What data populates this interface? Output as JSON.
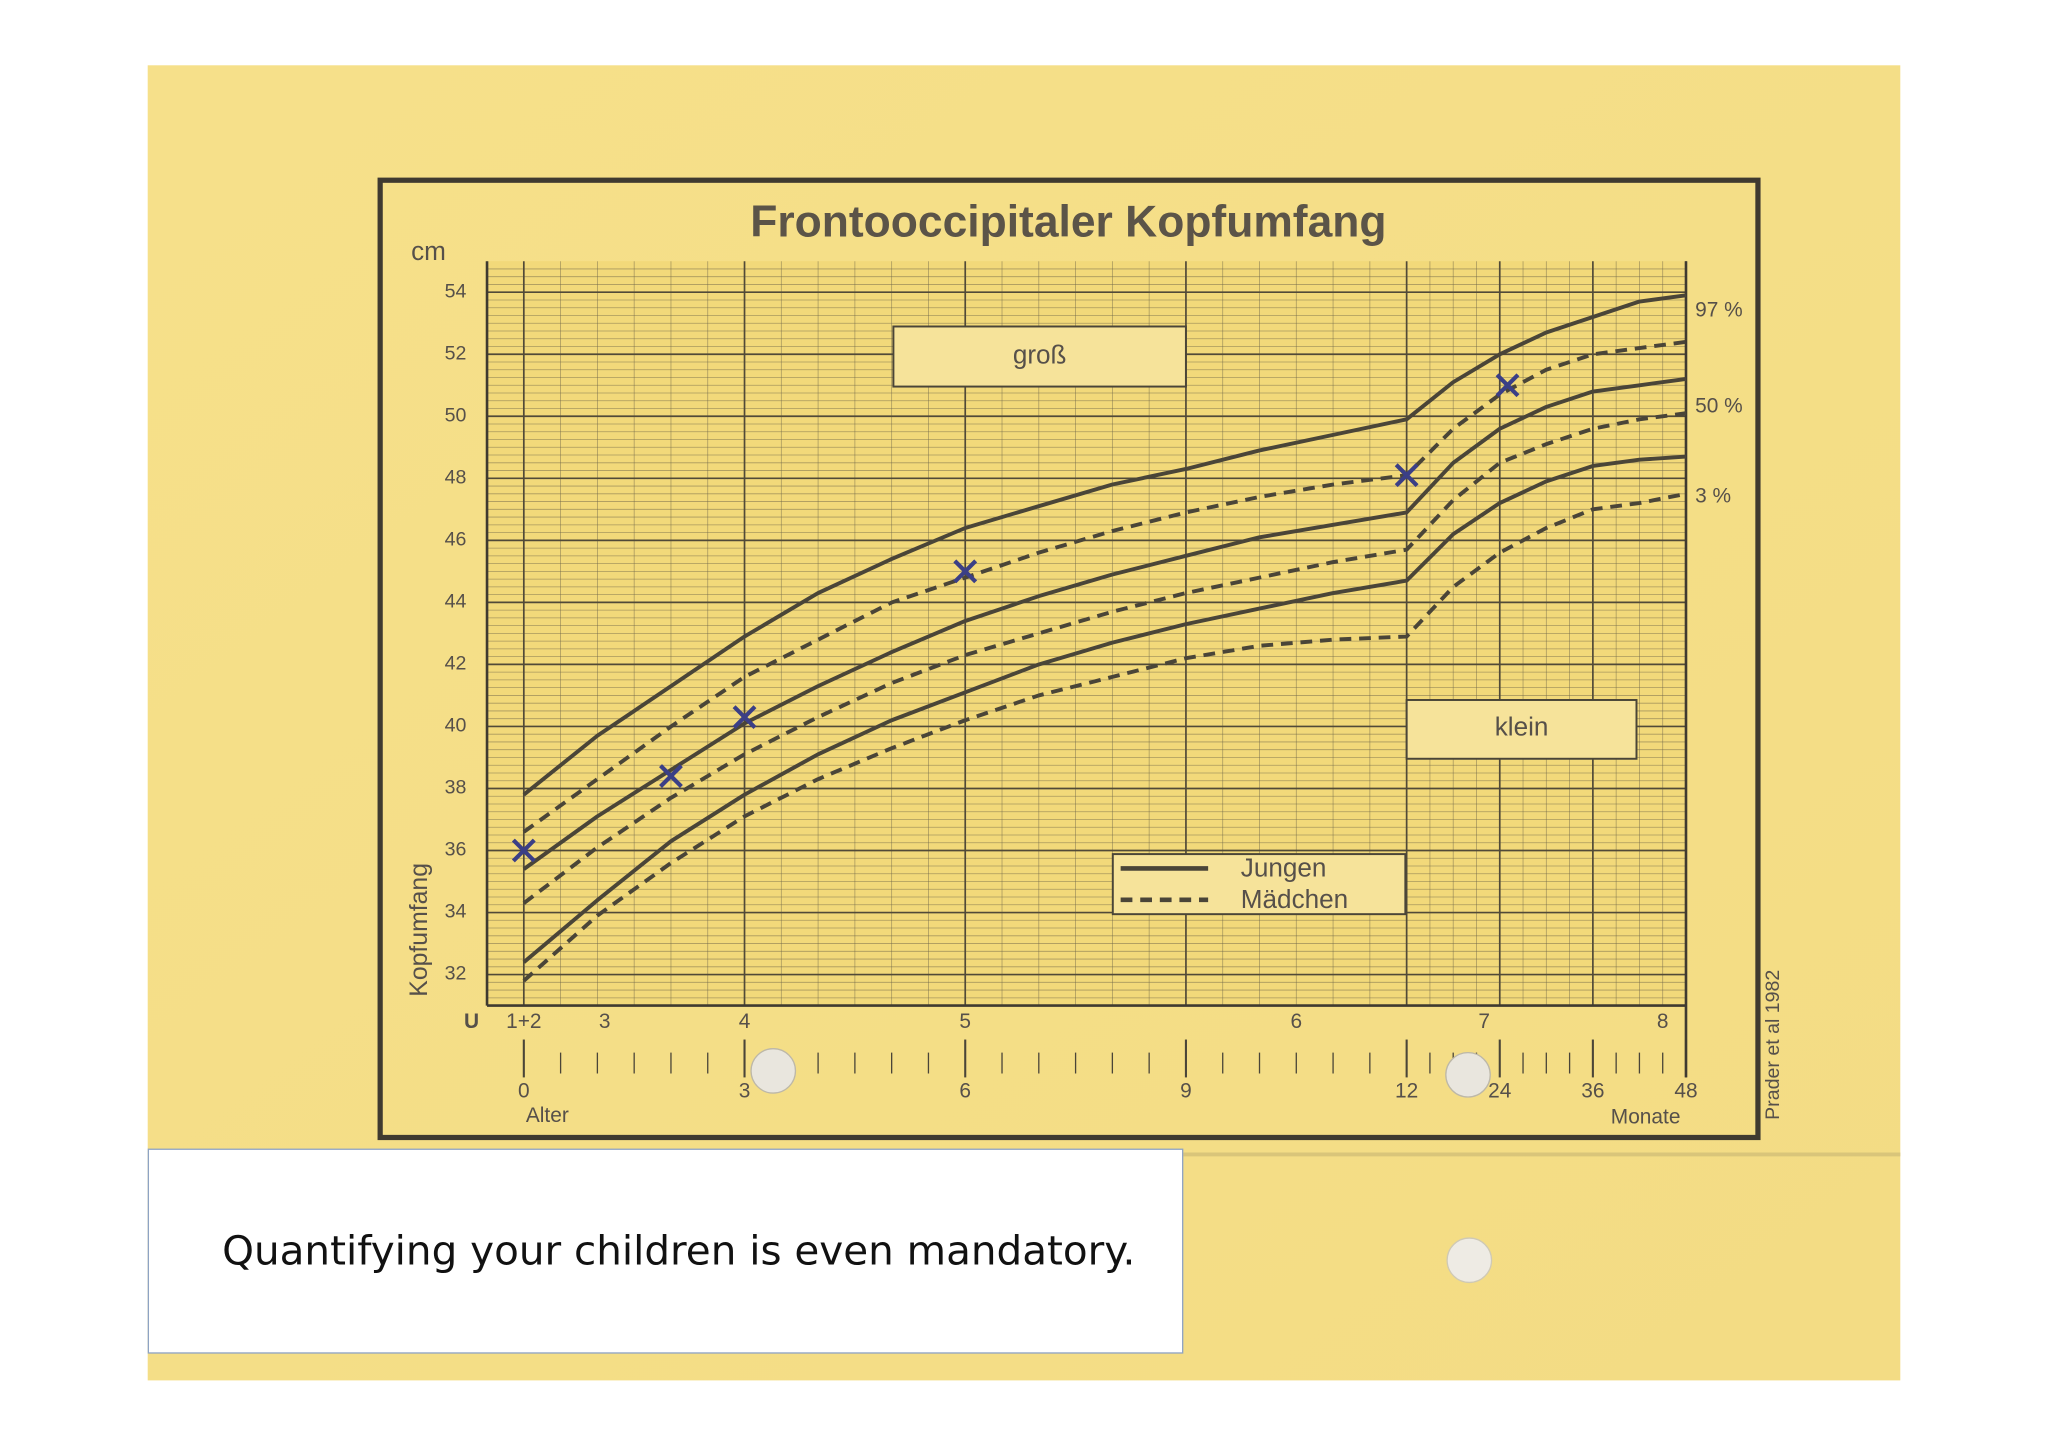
{
  "slide": {
    "caption": "Quantifying your children is even mandatory."
  },
  "chart_data": {
    "type": "line",
    "title": "Frontooccipitaler Kopfumfang",
    "y_unit": "cm",
    "ylabel": "Kopfumfang",
    "xlabel": "Alter",
    "x2label": "Monate",
    "u_label": "U",
    "region_labels": {
      "high": "groß",
      "low": "klein"
    },
    "source": "Prader et al 1982",
    "x": [
      0,
      1,
      2,
      3,
      4,
      5,
      6,
      7,
      8,
      9,
      10,
      11,
      12,
      18,
      24,
      30,
      36,
      42,
      48
    ],
    "xlim": [
      -0.5,
      48
    ],
    "xticks": [
      0,
      3,
      6,
      9,
      12,
      24,
      36,
      48
    ],
    "ylim": [
      31,
      55
    ],
    "yticks": [
      32,
      34,
      36,
      38,
      40,
      42,
      44,
      46,
      48,
      50,
      52,
      54
    ],
    "grid": true,
    "u_ticks": [
      {
        "value": 0,
        "label": "1+2"
      },
      {
        "value": 1.1,
        "label": "3"
      },
      {
        "value": 3,
        "label": "4"
      },
      {
        "value": 6,
        "label": "5"
      },
      {
        "value": 10.5,
        "label": "6"
      },
      {
        "value": 22,
        "label": "7"
      },
      {
        "value": 45,
        "label": "8"
      }
    ],
    "percentile_labels": [
      {
        "value": 53.4,
        "label": "97 %"
      },
      {
        "value": 50.3,
        "label": "50 %"
      },
      {
        "value": 47.4,
        "label": "3 %"
      }
    ],
    "groups": [
      {
        "name": "Jungen",
        "dash": "solid",
        "color": "#4a4538",
        "series": [
          {
            "values": [
              37.8,
              39.7,
              41.3,
              42.9,
              44.3,
              45.4,
              46.4,
              47.1,
              47.8,
              48.3,
              48.9,
              49.4,
              49.9,
              51.1,
              52.0,
              52.7,
              53.2,
              53.7,
              53.9
            ]
          },
          {
            "values": [
              35.4,
              37.1,
              38.6,
              40.1,
              41.3,
              42.4,
              43.4,
              44.2,
              44.9,
              45.5,
              46.1,
              46.5,
              46.9,
              48.5,
              49.6,
              50.3,
              50.8,
              51.0,
              51.2
            ]
          },
          {
            "values": [
              32.4,
              34.4,
              36.3,
              37.8,
              39.1,
              40.2,
              41.1,
              42.0,
              42.7,
              43.3,
              43.8,
              44.3,
              44.7,
              46.2,
              47.2,
              47.9,
              48.4,
              48.6,
              48.7
            ]
          }
        ]
      },
      {
        "name": "Mädchen",
        "dash": "dashed",
        "color": "#4a4538",
        "series": [
          {
            "values": [
              36.6,
              38.3,
              40.0,
              41.6,
              42.8,
              44.0,
              44.8,
              45.6,
              46.3,
              46.9,
              47.4,
              47.8,
              48.1,
              49.6,
              50.7,
              51.5,
              52.0,
              52.2,
              52.4
            ]
          },
          {
            "values": [
              34.3,
              36.1,
              37.7,
              39.1,
              40.3,
              41.4,
              42.3,
              43.0,
              43.7,
              44.3,
              44.8,
              45.3,
              45.7,
              47.3,
              48.5,
              49.1,
              49.6,
              49.9,
              50.1
            ]
          },
          {
            "values": [
              31.8,
              33.9,
              35.6,
              37.1,
              38.3,
              39.3,
              40.2,
              41.0,
              41.6,
              42.2,
              42.6,
              42.8,
              42.9,
              44.5,
              45.6,
              46.4,
              47.0,
              47.2,
              47.5
            ]
          }
        ]
      }
    ],
    "points": {
      "x": [
        0,
        2,
        3,
        6,
        12,
        25
      ],
      "values": [
        36.0,
        38.4,
        40.3,
        45.0,
        48.1,
        51.0
      ],
      "color": "#3b3f86"
    }
  }
}
